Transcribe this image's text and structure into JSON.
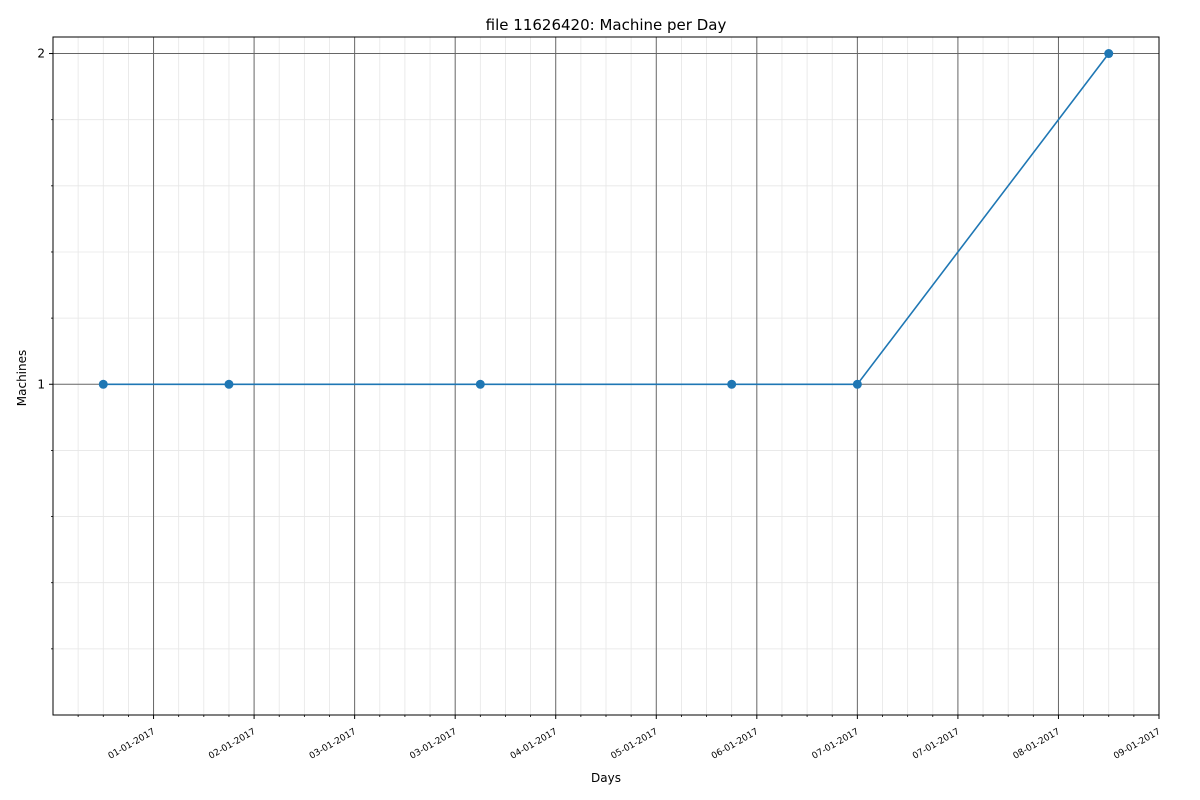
{
  "chart_data": {
    "type": "line",
    "title": "file 11626420: Machine per Day",
    "xlabel": "Days",
    "ylabel": "Machines",
    "x_tick_labels": [
      "01-01-2017",
      "02-01-2017",
      "03-01-2017",
      "03-01-2017",
      "04-01-2017",
      "05-01-2017",
      "06-01-2017",
      "07-01-2017",
      "07-01-2017",
      "08-01-2017",
      "09-01-2017"
    ],
    "y_ticks": [
      1,
      2
    ],
    "ylim": [
      0,
      2.05
    ],
    "grid": true,
    "series": [
      {
        "color": "#1f77b4",
        "marker": "circle",
        "x": [
          -0.5,
          0.75,
          3.25,
          5.75,
          7.0,
          9.5
        ],
        "values": [
          1,
          1,
          1,
          1,
          1,
          2
        ]
      }
    ]
  }
}
